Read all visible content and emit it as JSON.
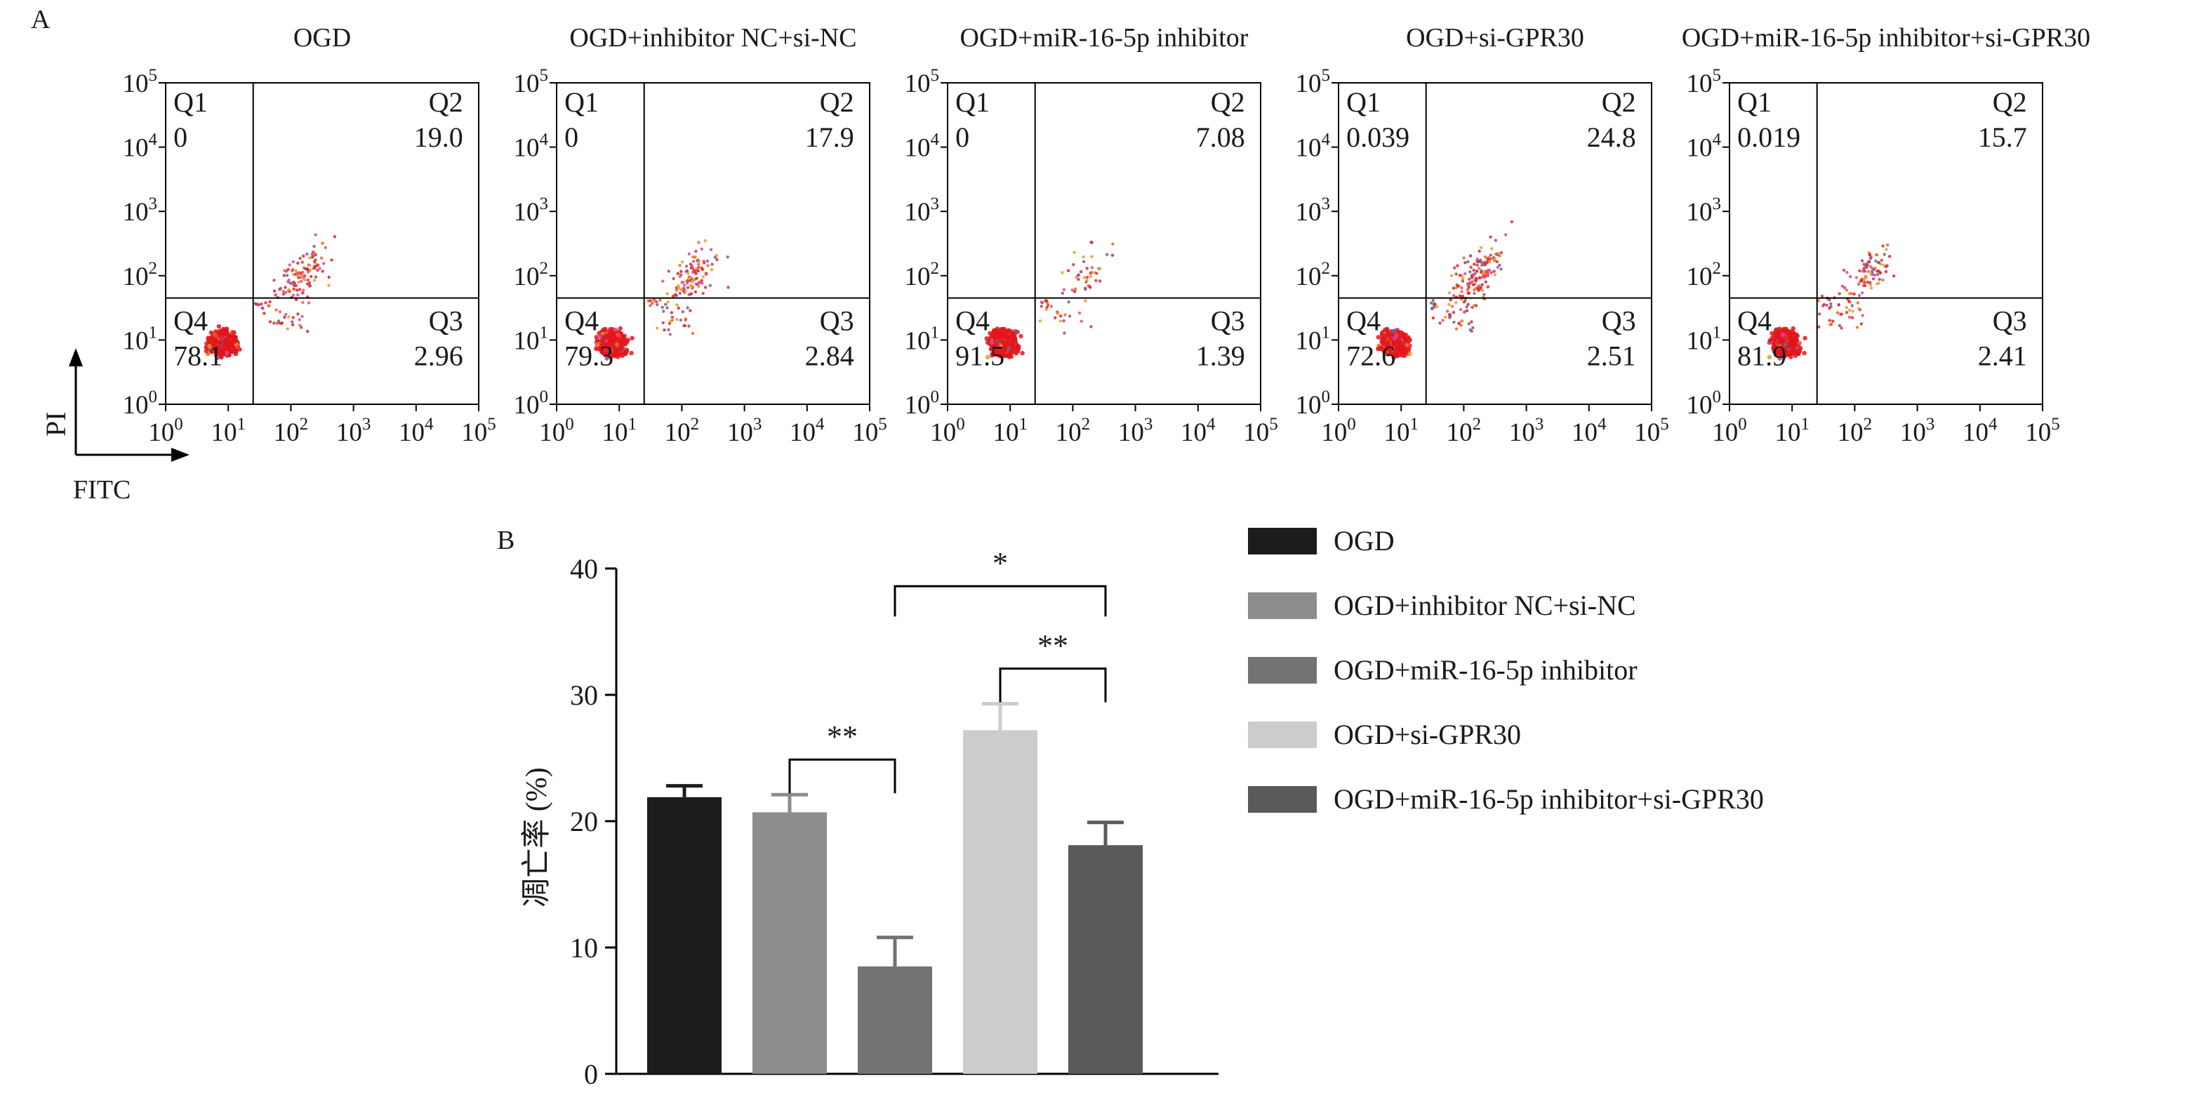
{
  "panel_a": {
    "label": "A",
    "yaxis_label": "PI",
    "xaxis_label": "FITC"
  },
  "panel_b": {
    "label": "B",
    "yaxis_label": "凋亡率 (%)"
  },
  "chart_data": [
    {
      "type": "scatter",
      "panel": "A",
      "description_free": true,
      "axis_scale": "log",
      "xlim": [
        1,
        100000
      ],
      "ylim": [
        1,
        100000
      ],
      "tick_exponents": [
        0,
        1,
        2,
        3,
        4,
        5
      ],
      "tick_base": "10",
      "quadrant_names": [
        "Q1",
        "Q2",
        "Q3",
        "Q4"
      ],
      "plots": [
        {
          "title": "OGD",
          "quadrants": {
            "Q1": "0",
            "Q2": "19.0",
            "Q3": "2.96",
            "Q4": "78.1"
          }
        },
        {
          "title": "OGD+inhibitor NC+si-NC",
          "quadrants": {
            "Q1": "0",
            "Q2": "17.9",
            "Q3": "2.84",
            "Q4": "79.3"
          }
        },
        {
          "title": "OGD+miR-16-5p inhibitor",
          "quadrants": {
            "Q1": "0",
            "Q2": "7.08",
            "Q3": "1.39",
            "Q4": "91.5"
          }
        },
        {
          "title": "OGD+si-GPR30",
          "quadrants": {
            "Q1": "0.039",
            "Q2": "24.8",
            "Q3": "2.51",
            "Q4": "72.6"
          }
        },
        {
          "title": "OGD+miR-16-5p inhibitor+si-GPR30",
          "quadrants": {
            "Q1": "0.019",
            "Q2": "15.7",
            "Q3": "2.41",
            "Q4": "81.9"
          }
        }
      ]
    },
    {
      "type": "bar",
      "panel": "B",
      "ylabel": "凋亡率 (%)",
      "ylim": [
        0,
        40
      ],
      "yticks": [
        0,
        10,
        20,
        30,
        40
      ],
      "categories": [
        "OGD",
        "OGD+inhibitor NC+si-NC",
        "OGD+miR-16-5p inhibitor",
        "OGD+si-GPR30",
        "OGD+miR-16-5p inhibitor+si-GPR30"
      ],
      "values": [
        21.9,
        20.7,
        8.5,
        27.2,
        18.1
      ],
      "errors": [
        0.9,
        1.4,
        2.3,
        2.1,
        1.8
      ],
      "colors": [
        "#1c1c1c",
        "#8d8d8d",
        "#737373",
        "#cccccc",
        "#5a5a5a"
      ],
      "legend": {
        "position": "right",
        "entries": [
          "OGD",
          "OGD+inhibitor NC+si-NC",
          "OGD+miR-16-5p inhibitor",
          "OGD+si-GPR30",
          "OGD+miR-16-5p inhibitor+si-GPR30"
        ]
      },
      "significance": [
        {
          "from": 1,
          "to": 2,
          "label": "**"
        },
        {
          "from": 2,
          "to": 4,
          "label": "*"
        },
        {
          "from": 3,
          "to": 4,
          "label": "**"
        }
      ]
    }
  ]
}
